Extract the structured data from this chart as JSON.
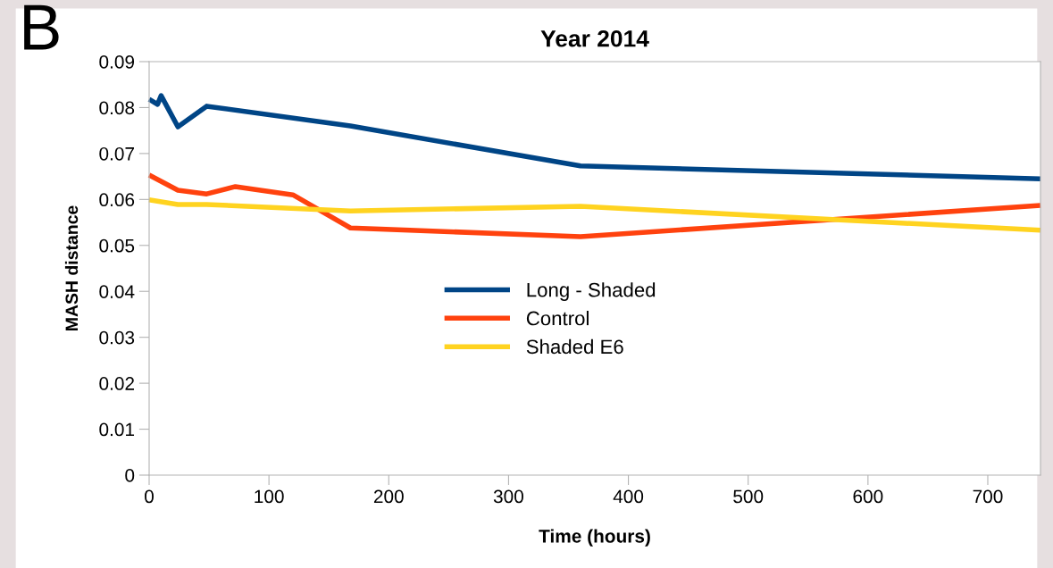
{
  "chart_data": {
    "type": "line",
    "title": "Year 2014",
    "xlabel": "Time (hours)",
    "ylabel": "MASH distance",
    "annotations": [
      "B"
    ],
    "xlim": [
      0,
      744
    ],
    "xticks": [
      0,
      100,
      200,
      300,
      400,
      500,
      600,
      700
    ],
    "ylim": [
      0,
      0.09
    ],
    "yticks": [
      0,
      0.01,
      0.02,
      0.03,
      0.04,
      0.05,
      0.06,
      0.07,
      0.08,
      0.09
    ],
    "grid": false,
    "legend": "center",
    "marker": "none",
    "line_style": "solid",
    "series": [
      {
        "name": "Long - Shaded",
        "color": "#004586",
        "x": [
          0,
          7,
          10,
          24,
          48,
          168,
          360,
          744
        ],
        "values": [
          0.0818,
          0.0807,
          0.0826,
          0.0758,
          0.0803,
          0.076,
          0.0673,
          0.0645
        ]
      },
      {
        "name": "Control",
        "color": "#ff420e",
        "x": [
          0,
          24,
          48,
          72,
          120,
          168,
          360,
          744
        ],
        "values": [
          0.0653,
          0.062,
          0.0612,
          0.0628,
          0.061,
          0.0538,
          0.0519,
          0.0587
        ]
      },
      {
        "name": "Shaded E6",
        "color": "#ffd320",
        "x": [
          0,
          24,
          48,
          168,
          360,
          744
        ],
        "values": [
          0.0599,
          0.0589,
          0.0589,
          0.0575,
          0.0585,
          0.0533
        ]
      }
    ]
  }
}
